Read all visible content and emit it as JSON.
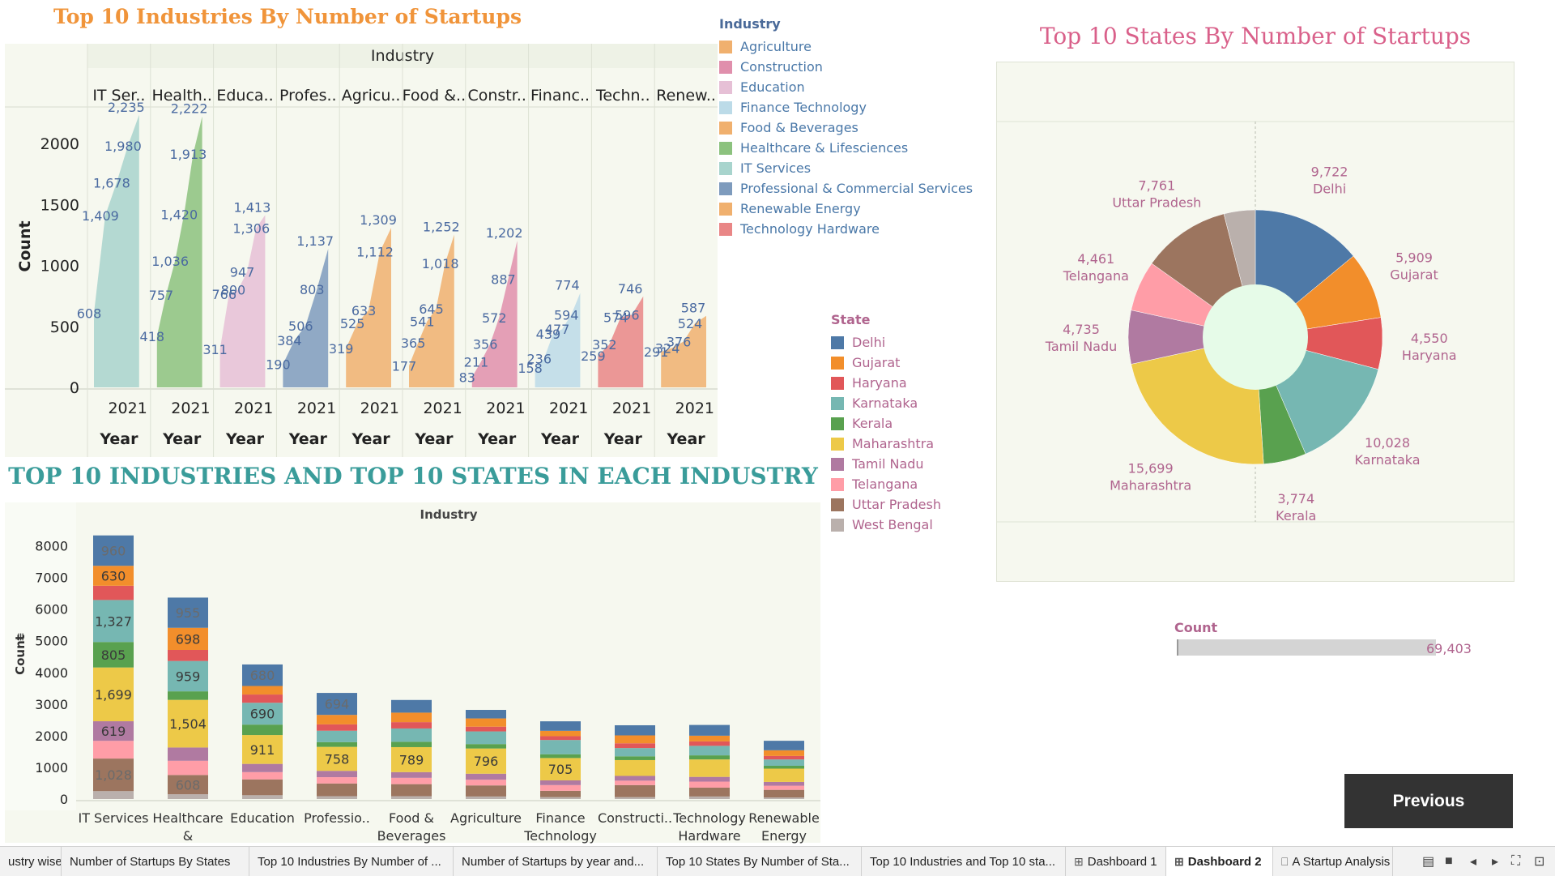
{
  "title_area_chart": "Top 10 Industries By Number of Startups",
  "title_stacked_chart": "TOP 10 INDUSTRIES AND TOP 10 STATES IN EACH INDUSTRY",
  "title_pie_chart": "Top 10 States By Number of Startups",
  "industry_legend": {
    "title": "Industry",
    "items": [
      {
        "label": "Agriculture",
        "color": "#f0b06e"
      },
      {
        "label": "Construction",
        "color": "#e08fac"
      },
      {
        "label": "Education",
        "color": "#e6c0d6"
      },
      {
        "label": "Finance Technology",
        "color": "#bcdbe8"
      },
      {
        "label": "Food & Beverages",
        "color": "#f0b06e"
      },
      {
        "label": "Healthcare & Lifesciences",
        "color": "#8cc27e"
      },
      {
        "label": "IT Services",
        "color": "#a8d4cd"
      },
      {
        "label": "Professional & Commercial Services",
        "color": "#7e9bbd"
      },
      {
        "label": "Renewable Energy",
        "color": "#f0b06e"
      },
      {
        "label": "Technology Hardware",
        "color": "#e98686"
      }
    ]
  },
  "state_legend": {
    "title": "State",
    "items": [
      {
        "label": "Delhi",
        "color": "#4e79a7"
      },
      {
        "label": "Gujarat",
        "color": "#f28e2b"
      },
      {
        "label": "Haryana",
        "color": "#e15759"
      },
      {
        "label": "Karnataka",
        "color": "#76b7b2"
      },
      {
        "label": "Kerala",
        "color": "#59a14f"
      },
      {
        "label": "Maharashtra",
        "color": "#edc948"
      },
      {
        "label": "Tamil Nadu",
        "color": "#b07aa1"
      },
      {
        "label": "Telangana",
        "color": "#ff9da7"
      },
      {
        "label": "Uttar Pradesh",
        "color": "#9c755f"
      },
      {
        "label": "West Bengal",
        "color": "#bab0ac"
      }
    ]
  },
  "count_filter": {
    "label": "Count",
    "value": "69,403"
  },
  "previous_button": "Previous",
  "tabs": [
    {
      "label": "ustry wise",
      "icon": ""
    },
    {
      "label": "Number of Startups By States",
      "icon": ""
    },
    {
      "label": "Top 10 Industries By Number of ...",
      "icon": ""
    },
    {
      "label": "Number of Startups by year and...",
      "icon": ""
    },
    {
      "label": "Top 10 States By Number of Sta...",
      "icon": ""
    },
    {
      "label": "Top 10 Industries and Top 10 sta...",
      "icon": ""
    },
    {
      "label": "Dashboard 1",
      "icon": "⊞"
    },
    {
      "label": "Dashboard 2",
      "icon": "⊞",
      "active": true
    },
    {
      "label": "A Startup Analysis",
      "icon": "⎕"
    }
  ],
  "chart_data": [
    {
      "type": "area",
      "title": "Top 10 Industries By Number of Startups",
      "column_header": "Industry",
      "ylabel": "Count",
      "ylim": [
        0,
        2300
      ],
      "y_ticks": [
        0,
        500,
        1000,
        1500,
        2000
      ],
      "x_tick_label": "2021",
      "x_header": "Year",
      "panels": [
        {
          "label": "IT Ser..",
          "color": "#a8d4cd",
          "values": [
            608,
            1409,
            1678,
            1980,
            2235
          ]
        },
        {
          "label": "Health..",
          "color": "#8cc27e",
          "values": [
            418,
            757,
            1036,
            1420,
            1913,
            2222
          ]
        },
        {
          "label": "Educa..",
          "color": "#e6c0d6",
          "values": [
            311,
            766,
            800,
            947,
            1306,
            1413
          ]
        },
        {
          "label": "Profes..",
          "color": "#7e9bbd",
          "values": [
            190,
            384,
            506,
            803,
            1137
          ]
        },
        {
          "label": "Agricu..",
          "color": "#f0b06e",
          "values": [
            319,
            525,
            633,
            1112,
            1309
          ]
        },
        {
          "label": "Food &..",
          "color": "#f0b06e",
          "values": [
            177,
            365,
            541,
            645,
            1018,
            1252
          ]
        },
        {
          "label": "Constr..",
          "color": "#e08fac",
          "values": [
            83,
            211,
            356,
            572,
            887,
            1202
          ]
        },
        {
          "label": "Financ..",
          "color": "#bcdbe8",
          "values": [
            158,
            236,
            439,
            477,
            594,
            774
          ]
        },
        {
          "label": "Techn..",
          "color": "#e98686",
          "values": [
            259,
            352,
            574,
            596,
            746
          ]
        },
        {
          "label": "Renew..",
          "color": "#f0b06e",
          "values": [
            291,
            324,
            376,
            524,
            587
          ]
        }
      ]
    },
    {
      "type": "bar",
      "stacked": true,
      "title": "TOP 10 INDUSTRIES AND TOP 10 STATES IN EACH INDUSTRY",
      "column_header": "Industry",
      "ylabel": "Count",
      "ylim": [
        0,
        8500
      ],
      "y_ticks": [
        0,
        1000,
        2000,
        3000,
        4000,
        5000,
        6000,
        7000,
        8000
      ],
      "categories": [
        "IT Services",
        "Healthcare & Lifescie..",
        "Education",
        "Professio..",
        "Food & Beverages",
        "Agriculture",
        "Finance Technology",
        "Constructi..",
        "Technology Hardware",
        "Renewable Energy"
      ],
      "stack_order": [
        "West Bengal",
        "Uttar Pradesh",
        "Telangana",
        "Tamil Nadu",
        "Maharashtra",
        "Kerala",
        "Karnataka",
        "Haryana",
        "Gujarat",
        "Delhi"
      ],
      "series": [
        {
          "name": "West Bengal",
          "values": [
            250,
            150,
            120,
            90,
            90,
            80,
            60,
            60,
            80,
            50
          ]
        },
        {
          "name": "Uttar Pradesh",
          "values": [
            1028,
            608,
            500,
            400,
            380,
            350,
            200,
            380,
            280,
            240
          ]
        },
        {
          "name": "Telangana",
          "values": [
            560,
            450,
            230,
            200,
            200,
            180,
            180,
            140,
            190,
            130
          ]
        },
        {
          "name": "Tamil Nadu",
          "values": [
            619,
            420,
            260,
            200,
            180,
            190,
            150,
            150,
            150,
            120
          ]
        },
        {
          "name": "Maharashtra",
          "values": [
            1699,
            1504,
            911,
            758,
            789,
            796,
            705,
            500,
            550,
            420
          ]
        },
        {
          "name": "Kerala",
          "values": [
            805,
            270,
            330,
            150,
            170,
            140,
            120,
            120,
            130,
            90
          ]
        },
        {
          "name": "Karnataka",
          "values": [
            1327,
            959,
            690,
            360,
            420,
            400,
            450,
            260,
            300,
            200
          ]
        },
        {
          "name": "Haryana",
          "values": [
            450,
            350,
            260,
            200,
            200,
            150,
            120,
            150,
            140,
            110
          ]
        },
        {
          "name": "Gujarat",
          "values": [
            630,
            698,
            270,
            300,
            300,
            260,
            170,
            250,
            180,
            180
          ]
        },
        {
          "name": "Delhi",
          "values": [
            960,
            955,
            680,
            694,
            400,
            270,
            300,
            320,
            340,
            300
          ]
        }
      ],
      "data_labels": {
        "IT Services": [
          "960",
          "630",
          "1,327",
          "805",
          "1,699",
          "619",
          "1,028"
        ],
        "Healthcare & Lifescie..": [
          "955",
          "698",
          "959",
          "1,504",
          "608"
        ],
        "Education": [
          "680",
          "690",
          "911"
        ],
        "Professio..": [
          "694",
          "758"
        ],
        "Food & Beverages": [
          "789"
        ],
        "Agriculture": [
          "796"
        ],
        "Finance Technology": [
          "705"
        ]
      }
    },
    {
      "type": "pie",
      "title": "Top 10 States By Number of Startups",
      "donut": true,
      "slices": [
        {
          "label": "Delhi",
          "value": 9722,
          "display": "9,722"
        },
        {
          "label": "Gujarat",
          "value": 5909,
          "display": "5,909"
        },
        {
          "label": "Haryana",
          "value": 4550,
          "display": "4,550"
        },
        {
          "label": "Karnataka",
          "value": 10028,
          "display": "10,028"
        },
        {
          "label": "Kerala",
          "value": 3774,
          "display": "3,774"
        },
        {
          "label": "Maharashtra",
          "value": 15699,
          "display": "15,699"
        },
        {
          "label": "Tamil Nadu",
          "value": 4735,
          "display": "4,735"
        },
        {
          "label": "Telangana",
          "value": 4461,
          "display": "4,461"
        },
        {
          "label": "Uttar Pradesh",
          "value": 7761,
          "display": "7,761"
        },
        {
          "label": "West Bengal",
          "value": 2764,
          "display": ""
        }
      ]
    }
  ]
}
